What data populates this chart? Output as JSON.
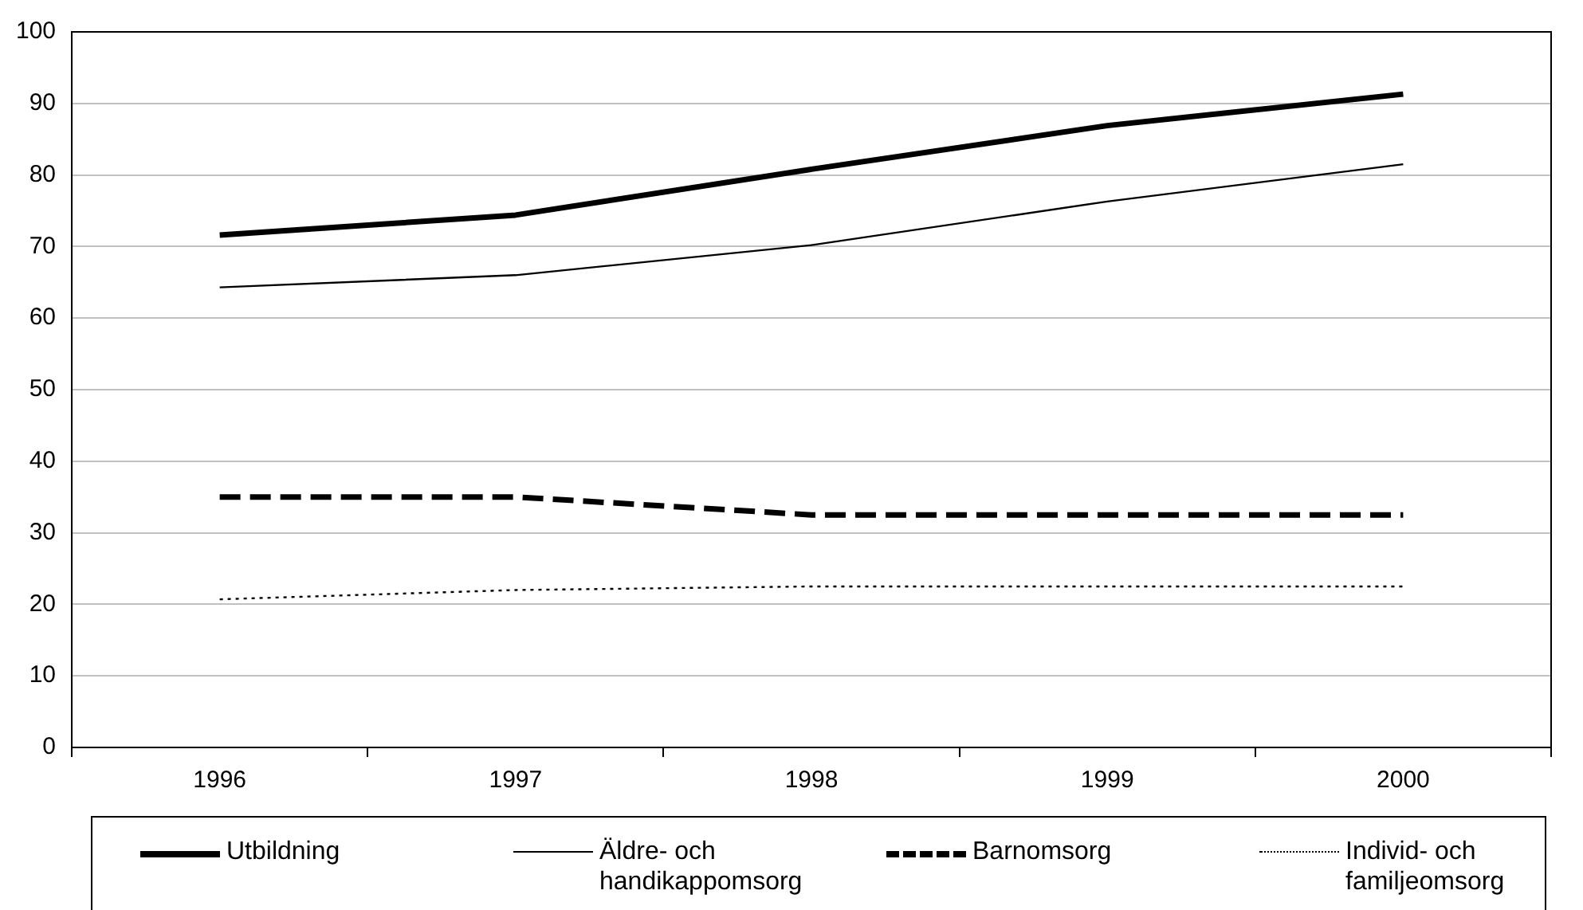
{
  "chart_data": {
    "type": "line",
    "categories": [
      "1996",
      "1997",
      "1998",
      "1999",
      "2000"
    ],
    "series": [
      {
        "name": "Utbildning",
        "color": "#000000",
        "line_style": "solid",
        "values": [
          71.6,
          74.4,
          80.8,
          86.9,
          91.3
        ]
      },
      {
        "name": "Äldre- och handikappomsorg",
        "color": "#000000",
        "line_style": "solid",
        "values": [
          64.3,
          66,
          70.2,
          76.3,
          81.5
        ]
      },
      {
        "name": "Barnomsorg",
        "color": "#000000",
        "line_style": "dashed",
        "values": [
          35,
          35,
          32.5,
          32.5,
          32.5
        ]
      },
      {
        "name": "Individ- och familjeomsorg",
        "color": "#000000",
        "line_style": "dotted",
        "values": [
          20.7,
          22,
          22.5,
          22.5,
          22.5
        ]
      }
    ],
    "ylim": [
      0,
      100
    ],
    "yticks": [
      0,
      10,
      20,
      30,
      40,
      50,
      60,
      70,
      80,
      90,
      100
    ],
    "grid": "y",
    "legend": "bottom",
    "marker": "none"
  }
}
